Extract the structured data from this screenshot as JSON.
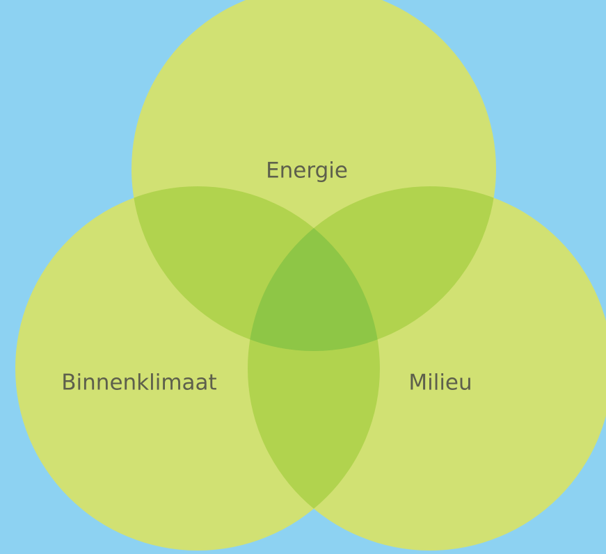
{
  "sets": [
    {
      "label": "Energie"
    },
    {
      "label": "Binnenklimaat"
    },
    {
      "label": "Milieu"
    }
  ]
}
